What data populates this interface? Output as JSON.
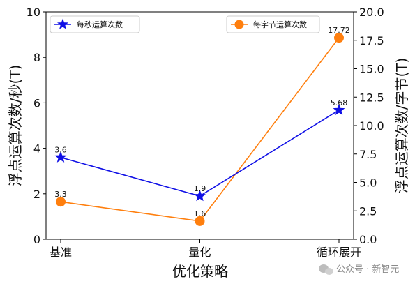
{
  "chart_data": {
    "type": "line",
    "categories": [
      "基准",
      "量化",
      "循环展开"
    ],
    "xlabel": "优化策略",
    "ylabel_left": "浮点运算次数/秒(T)",
    "ylabel_right": "浮点运算次数/字节(T)",
    "ylim_left": [
      0,
      10
    ],
    "ylim_right": [
      0.0,
      20.0
    ],
    "yticks_left": [
      "0",
      "2",
      "4",
      "6",
      "8",
      "10"
    ],
    "yticks_right": [
      "0.0",
      "2.5",
      "5.0",
      "7.5",
      "10.0",
      "12.5",
      "15.0",
      "17.5",
      "20.0"
    ],
    "grid": false,
    "series": [
      {
        "name": "每秒运算次数",
        "axis": "left",
        "color": "#1010e6",
        "marker": "star",
        "values": [
          3.6,
          1.9,
          5.68
        ],
        "labels": [
          "3.6",
          "1.9",
          "5.68"
        ]
      },
      {
        "name": "每字节运算次数",
        "axis": "right",
        "color": "#ff7f0e",
        "marker": "circle",
        "values": [
          3.3,
          1.6,
          17.72
        ],
        "labels": [
          "3.3",
          "1.6",
          "17.72"
        ]
      }
    ],
    "legends": [
      "top-left",
      "top-right"
    ]
  },
  "watermark": {
    "text": "公众号 · 新智元",
    "icon": "wechat-icon"
  }
}
